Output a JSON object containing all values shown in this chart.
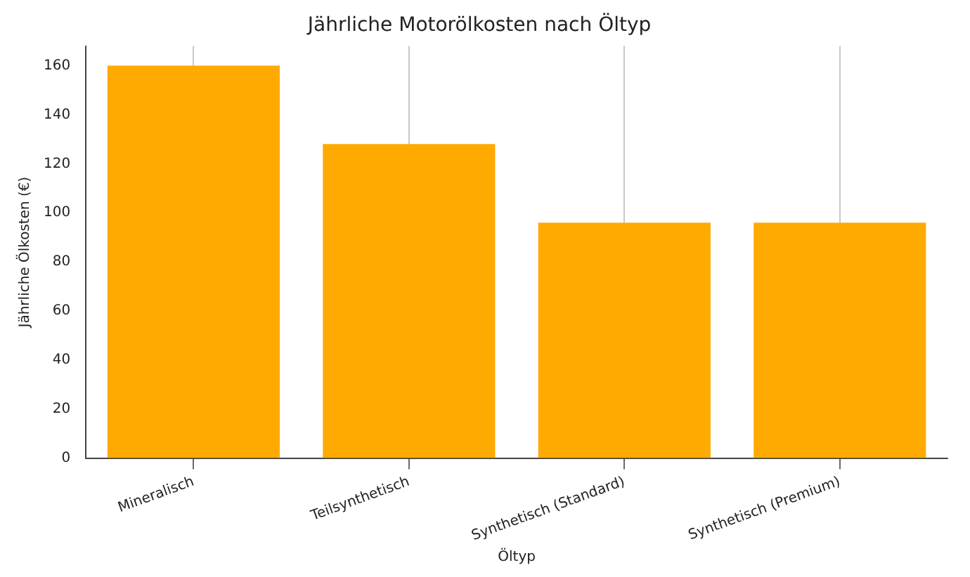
{
  "chart_data": {
    "type": "bar",
    "title": "Jährliche Motorölkosten nach Öltyp",
    "xlabel": "Öltyp",
    "ylabel": "Jährliche Ölkosten (€)",
    "categories": [
      "Mineralisch",
      "Teilsynthetisch",
      "Synthetisch (Standard)",
      "Synthetisch (Premium)"
    ],
    "values": [
      160,
      128,
      96,
      96
    ],
    "color": "#ffaa00",
    "ylim": [
      0,
      168
    ],
    "yticks": [
      0,
      20,
      40,
      60,
      80,
      100,
      120,
      140,
      160
    ],
    "grid": "x"
  }
}
